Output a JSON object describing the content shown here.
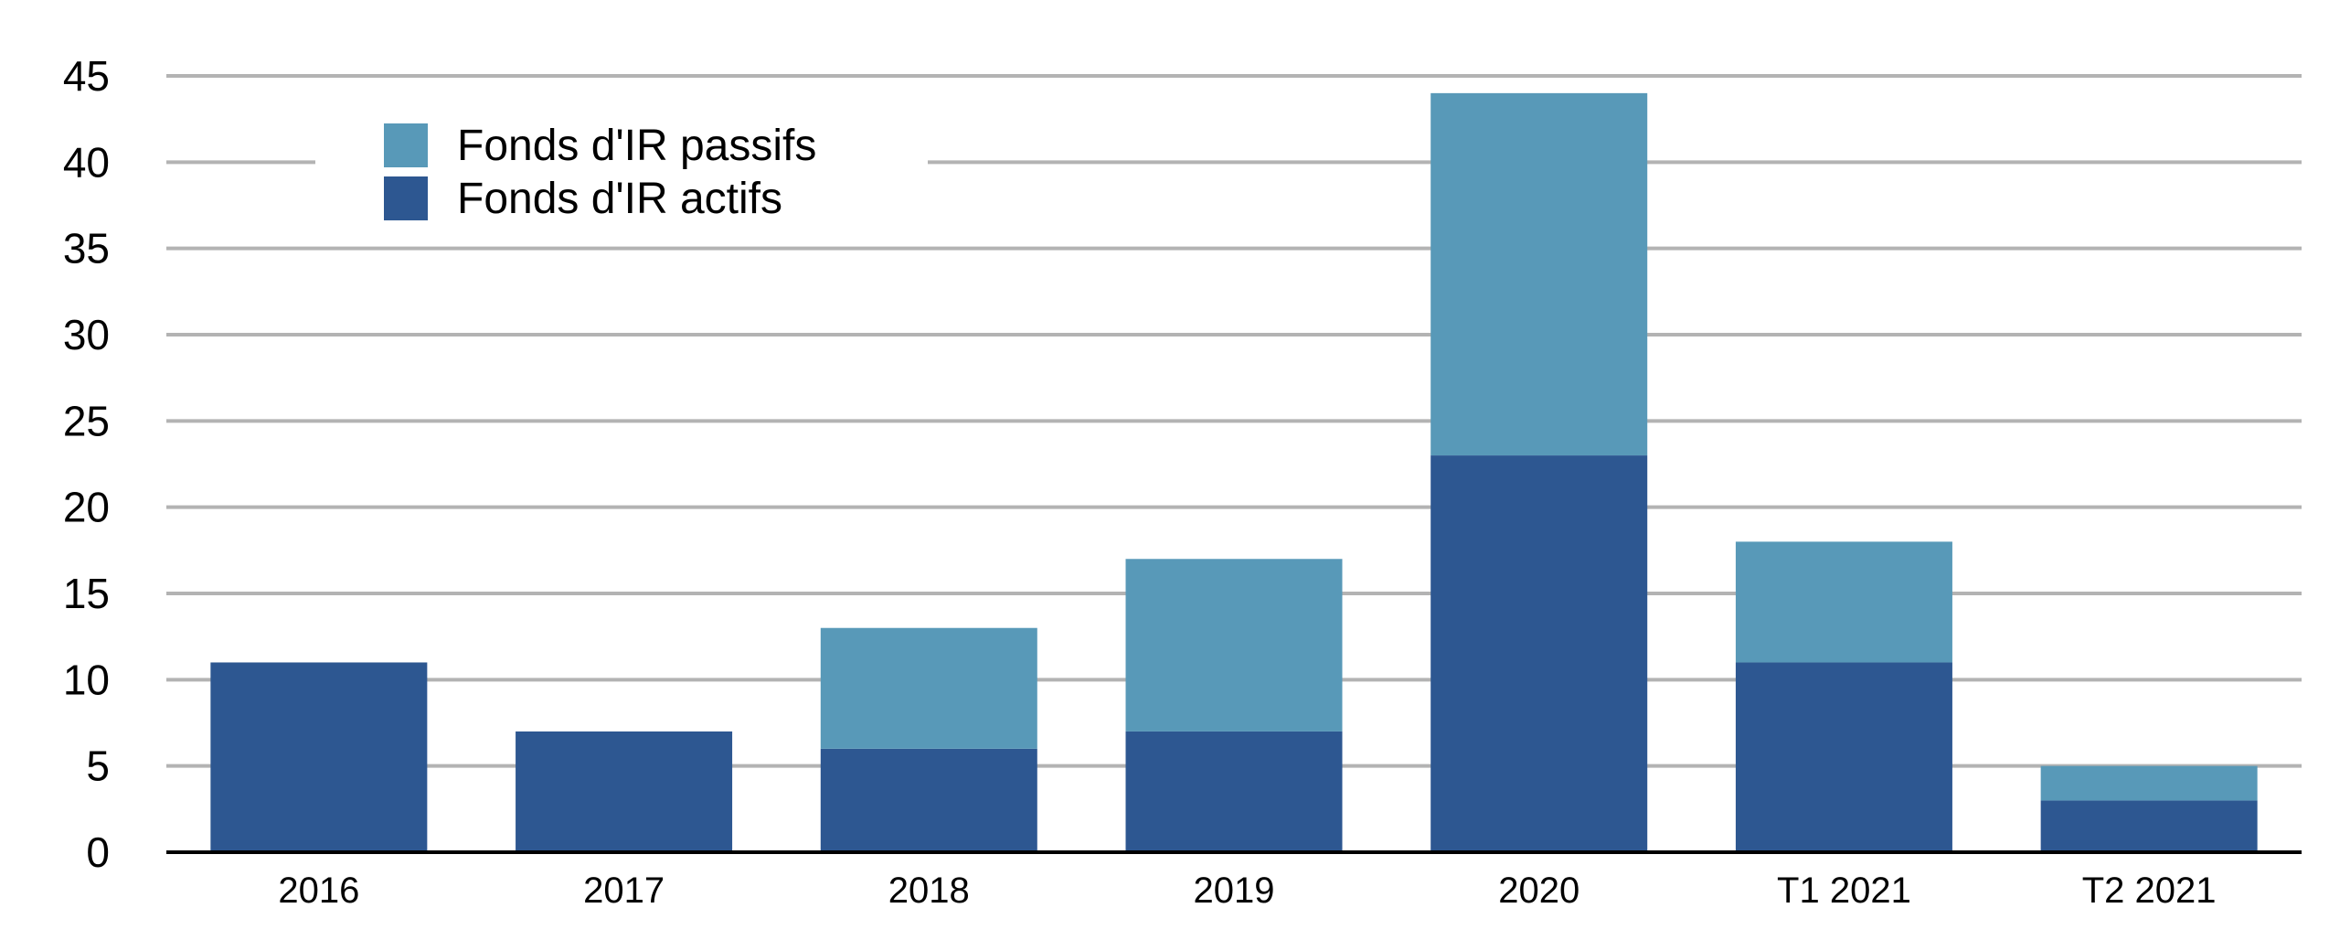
{
  "chart_data": {
    "type": "bar",
    "stacked": true,
    "categories": [
      "2016",
      "2017",
      "2018",
      "2019",
      "2020",
      "T1 2021",
      "T2 2021"
    ],
    "series": [
      {
        "name": "Fonds d'IR actifs",
        "color": "#2d5791",
        "values": [
          11,
          7,
          6,
          7,
          23,
          11,
          3
        ]
      },
      {
        "name": "Fonds d'IR passifs",
        "color": "#5899b8",
        "values": [
          0,
          0,
          7,
          10,
          21,
          7,
          2
        ]
      }
    ],
    "ylim": [
      0,
      45
    ],
    "yticks": [
      0,
      5,
      10,
      15,
      20,
      25,
      30,
      35,
      40,
      45
    ],
    "grid": true,
    "legend": {
      "placement": "top-left",
      "order": [
        "Fonds d'IR passifs",
        "Fonds d'IR actifs"
      ]
    },
    "title": "",
    "xlabel": "",
    "ylabel": ""
  }
}
